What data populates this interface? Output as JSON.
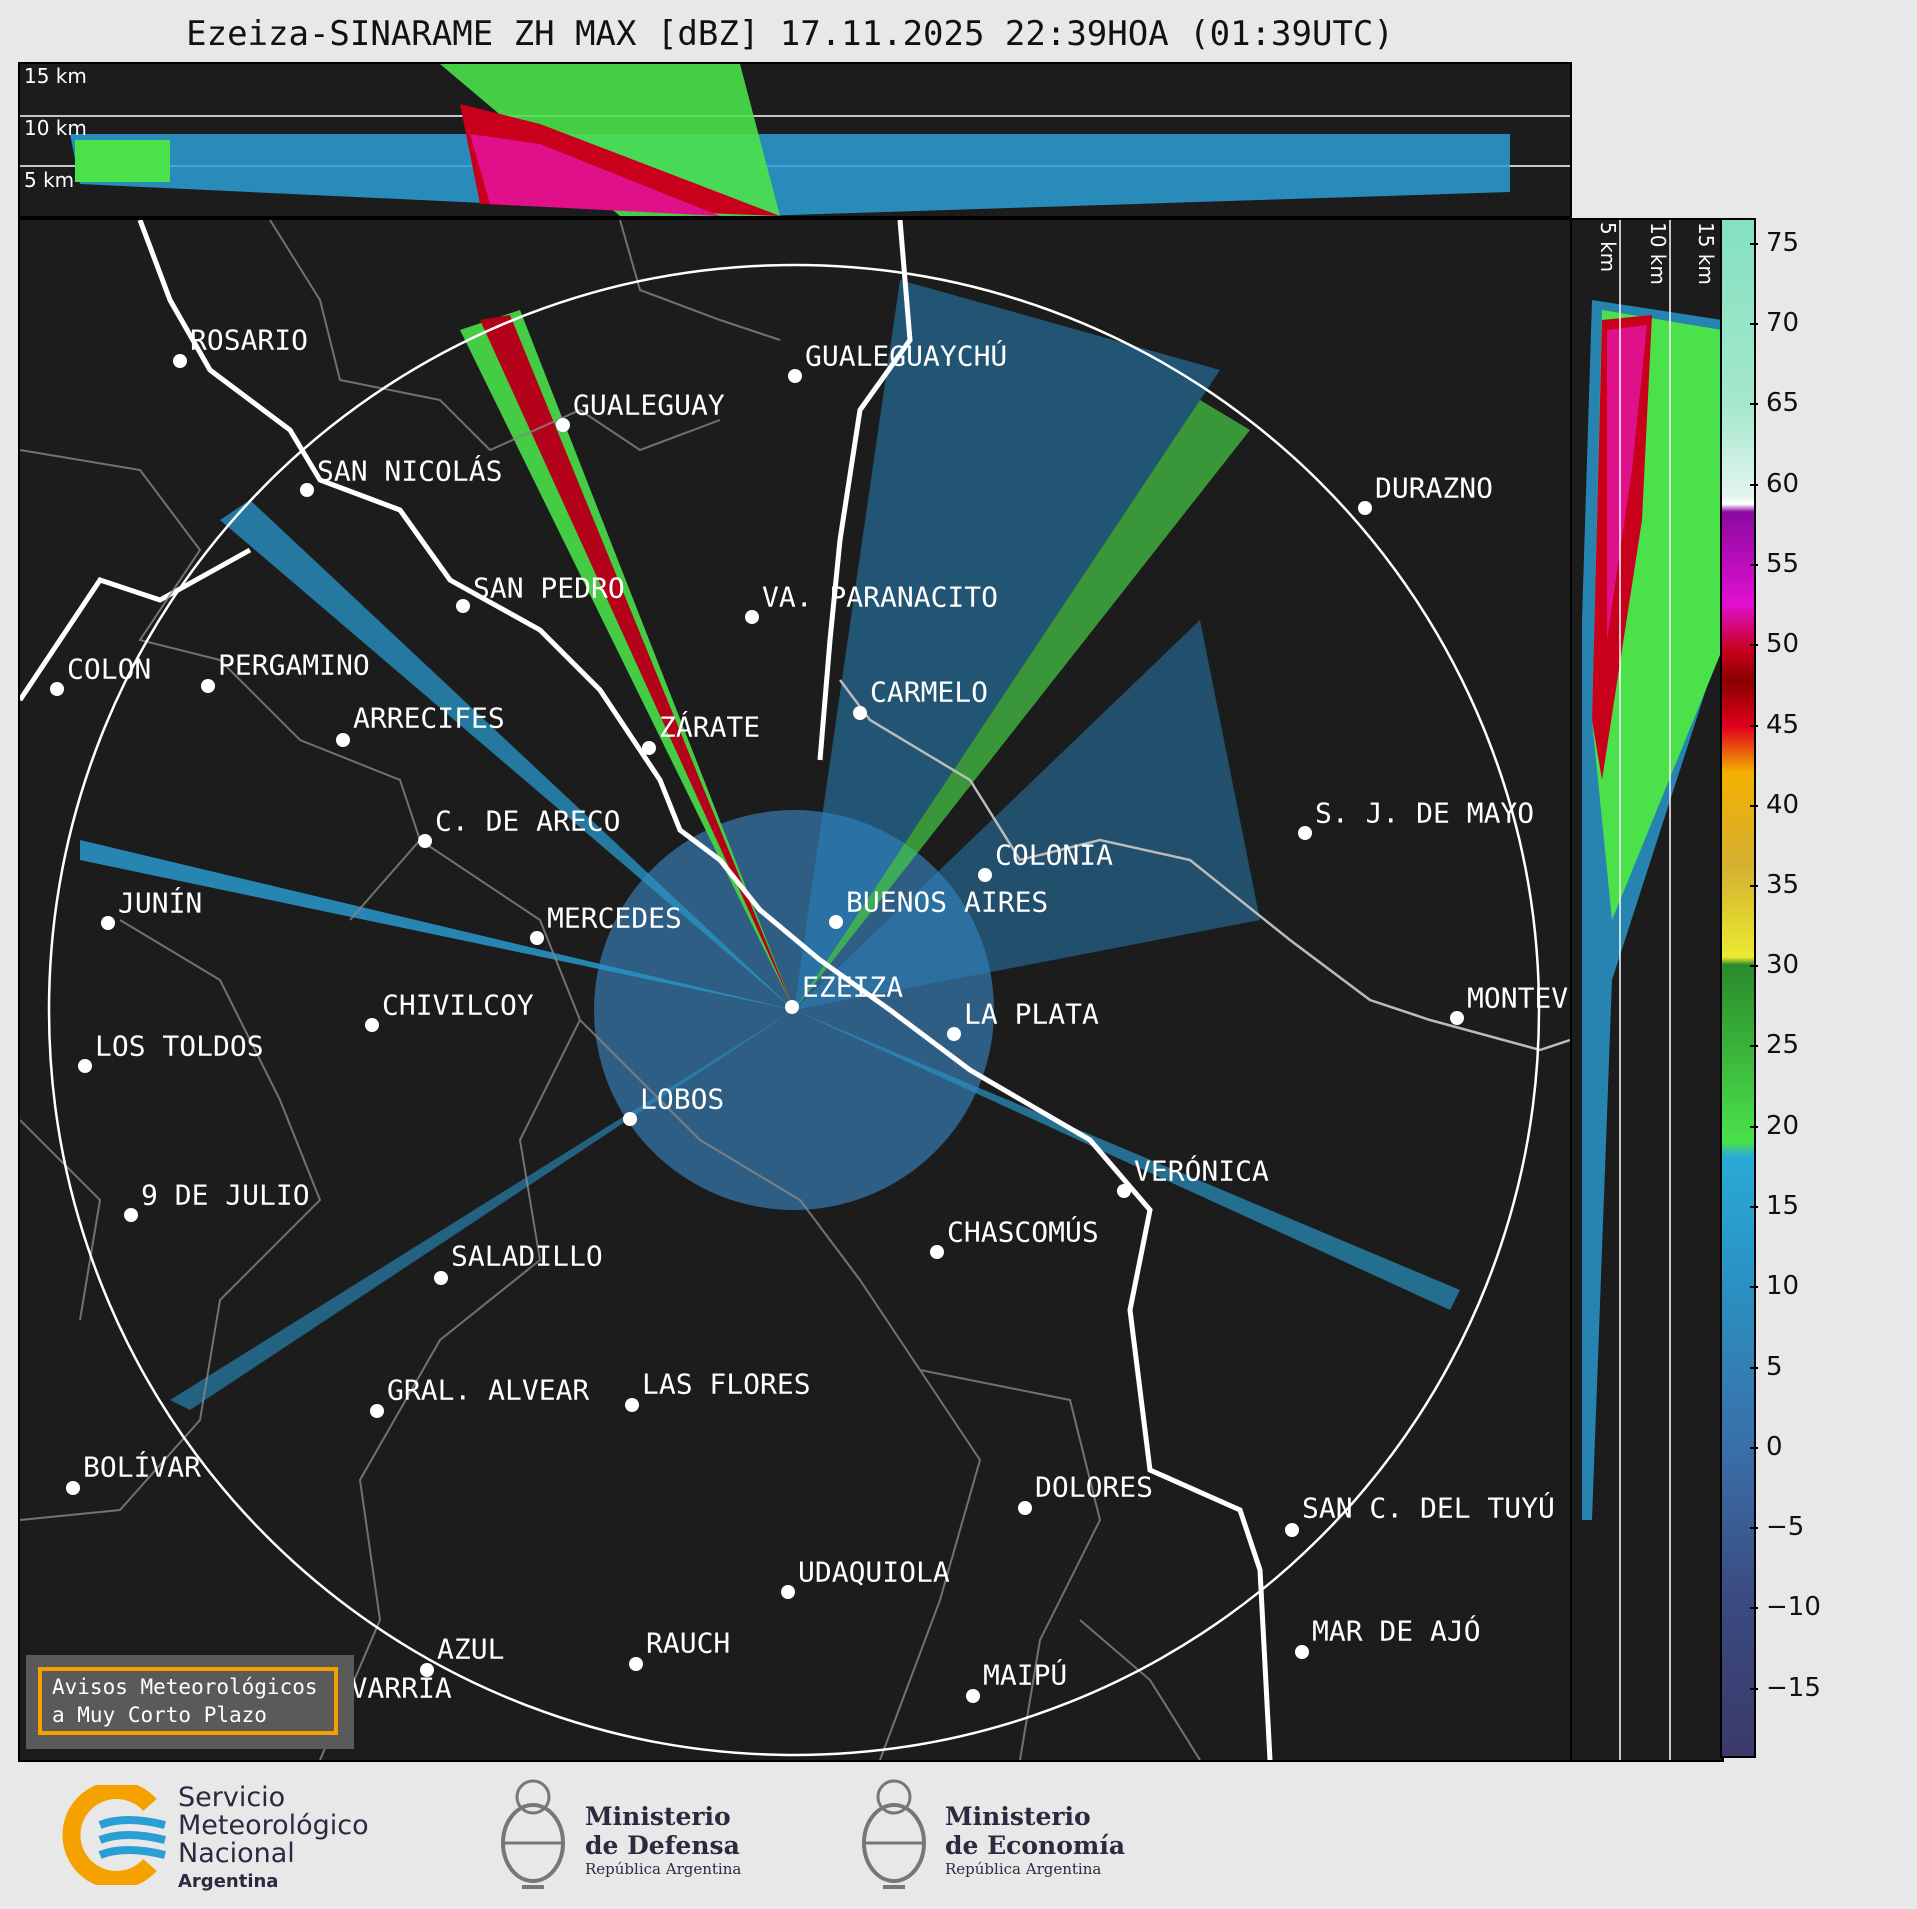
{
  "title": "Ezeiza-SINARAME ZH MAX [dBZ] 17.11.2025 22:39HOA (01:39UTC)",
  "height_labels": [
    "15 km",
    "10 km",
    "5 km"
  ],
  "cities": [
    {
      "name": "ROSARIO"
    },
    {
      "name": "GUALEGUAYCHÚ"
    },
    {
      "name": "GUALEGUAY"
    },
    {
      "name": "SAN NICOLÁS"
    },
    {
      "name": "DURAZNO"
    },
    {
      "name": "SAN PEDRO"
    },
    {
      "name": "VA. PARANACITO"
    },
    {
      "name": "COLON"
    },
    {
      "name": "PERGAMINO"
    },
    {
      "name": "CARMELO"
    },
    {
      "name": "ARRECIFES"
    },
    {
      "name": "ZÁRATE"
    },
    {
      "name": "S. J. DE MAYO"
    },
    {
      "name": "C. DE ARECO"
    },
    {
      "name": "COLONIA"
    },
    {
      "name": "JUNÍN"
    },
    {
      "name": "BUENOS AIRES"
    },
    {
      "name": "MERCEDES"
    },
    {
      "name": "EZEIZA"
    },
    {
      "name": "MONTEV"
    },
    {
      "name": "CHIVILCOY"
    },
    {
      "name": "LA PLATA"
    },
    {
      "name": "LOS TOLDOS"
    },
    {
      "name": "LOBOS"
    },
    {
      "name": "VERÓNICA"
    },
    {
      "name": "9 DE JULIO"
    },
    {
      "name": "CHASCOMÚS"
    },
    {
      "name": "SALADILLO"
    },
    {
      "name": "GRAL. ALVEAR"
    },
    {
      "name": "LAS FLORES"
    },
    {
      "name": "BOLÍVAR"
    },
    {
      "name": "DOLORES"
    },
    {
      "name": "SAN C. DEL TUYÚ"
    },
    {
      "name": "UDAQUIOLA"
    },
    {
      "name": "MAR DE AJÓ"
    },
    {
      "name": "AZUL"
    },
    {
      "name": "RAUCH"
    },
    {
      "name": "MAIPÚ"
    },
    {
      "name": "OLAVARRÍA"
    }
  ],
  "colorbar": {
    "ticks": [
      "75",
      "70",
      "65",
      "60",
      "55",
      "50",
      "45",
      "40",
      "35",
      "30",
      "25",
      "20",
      "15",
      "10",
      "5",
      "0",
      "−5",
      "−10",
      "−15"
    ]
  },
  "notice": {
    "line1": "Avisos Meteorológicos",
    "line2": "a Muy Corto Plazo"
  },
  "logos": {
    "smn": {
      "l1": "Servicio",
      "l2": "Meteorológico",
      "l3": "Nacional",
      "l4": "Argentina"
    },
    "defensa": {
      "l1": "Ministerio",
      "l2": "de Defensa",
      "l3": "República Argentina"
    },
    "economia": {
      "l1": "Ministerio",
      "l2": "de Economía",
      "l3": "República Argentina"
    }
  },
  "colors": {
    "background": "#1c1c1c",
    "ring": "#ffffff",
    "border": "#ffffff",
    "accent": "#f5a100",
    "echo_base": "#3a7fb8"
  }
}
